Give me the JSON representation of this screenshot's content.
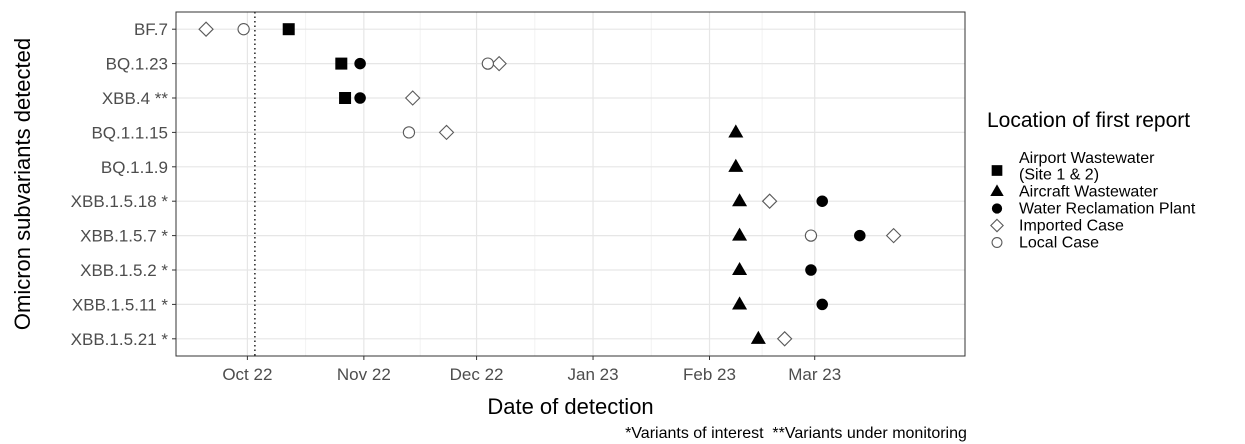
{
  "chart_data": {
    "type": "scatter",
    "xlabel": "Date of detection",
    "ylabel": "Omicron subvariants detected",
    "x_ticks": [
      "Oct 22",
      "Nov 22",
      "Dec 22",
      "Jan 23",
      "Feb 23",
      "Mar 23"
    ],
    "x_tick_dates": [
      "2022-10-01",
      "2022-11-01",
      "2022-12-01",
      "2023-01-01",
      "2023-02-01",
      "2023-03-01"
    ],
    "xlim": [
      "2022-09-12",
      "2023-04-10"
    ],
    "grid": true,
    "reference_line": {
      "date": "2022-10-03",
      "style": "dotted"
    },
    "categories": [
      "BF.7",
      "BQ.1.23",
      "XBB.4 **",
      "BQ.1.1.15",
      "BQ.1.1.9",
      "XBB.1.5.18 *",
      "XBB.1.5.7 *",
      "XBB.1.5.2 *",
      "XBB.1.5.11 *",
      "XBB.1.5.21 *"
    ],
    "legend": {
      "title": "Location of first report",
      "position": "right",
      "entries": [
        {
          "label_lines": [
            "Airport Wastewater",
            " (Site 1 & 2)"
          ],
          "shape": "square",
          "filled": true
        },
        {
          "label_lines": [
            "Aircraft Wastewater"
          ],
          "shape": "triangle",
          "filled": true
        },
        {
          "label_lines": [
            "Water Reclamation Plant"
          ],
          "shape": "circle",
          "filled": true
        },
        {
          "label_lines": [
            "Imported Case"
          ],
          "shape": "diamond",
          "filled": false
        },
        {
          "label_lines": [
            "Local Case"
          ],
          "shape": "circle",
          "filled": false
        }
      ]
    },
    "series": [
      {
        "name": "Airport Wastewater (Site 1 & 2)",
        "shape": "square",
        "filled": true,
        "points": [
          {
            "category": "BF.7",
            "date": "2022-10-12"
          },
          {
            "category": "BQ.1.23",
            "date": "2022-10-26"
          },
          {
            "category": "XBB.4 **",
            "date": "2022-10-27"
          }
        ]
      },
      {
        "name": "Aircraft Wastewater",
        "shape": "triangle",
        "filled": true,
        "points": [
          {
            "category": "BQ.1.1.15",
            "date": "2023-02-08"
          },
          {
            "category": "BQ.1.1.9",
            "date": "2023-02-08"
          },
          {
            "category": "XBB.1.5.18 *",
            "date": "2023-02-09"
          },
          {
            "category": "XBB.1.5.7 *",
            "date": "2023-02-09"
          },
          {
            "category": "XBB.1.5.2 *",
            "date": "2023-02-09"
          },
          {
            "category": "XBB.1.5.11 *",
            "date": "2023-02-09"
          },
          {
            "category": "XBB.1.5.21 *",
            "date": "2023-02-14"
          }
        ]
      },
      {
        "name": "Water Reclamation Plant",
        "shape": "circle",
        "filled": true,
        "points": [
          {
            "category": "BQ.1.23",
            "date": "2022-10-31"
          },
          {
            "category": "XBB.4 **",
            "date": "2022-10-31"
          },
          {
            "category": "XBB.1.5.18 *",
            "date": "2023-03-03"
          },
          {
            "category": "XBB.1.5.7 *",
            "date": "2023-03-13"
          },
          {
            "category": "XBB.1.5.2 *",
            "date": "2023-02-28"
          },
          {
            "category": "XBB.1.5.11 *",
            "date": "2023-03-03"
          }
        ]
      },
      {
        "name": "Imported Case",
        "shape": "diamond",
        "filled": false,
        "points": [
          {
            "category": "BF.7",
            "date": "2022-09-20"
          },
          {
            "category": "BQ.1.23",
            "date": "2022-12-07"
          },
          {
            "category": "XBB.4 **",
            "date": "2022-11-14"
          },
          {
            "category": "BQ.1.1.15",
            "date": "2022-11-23"
          },
          {
            "category": "XBB.1.5.18 *",
            "date": "2023-02-17"
          },
          {
            "category": "XBB.1.5.7 *",
            "date": "2023-03-22"
          },
          {
            "category": "XBB.1.5.21 *",
            "date": "2023-02-21"
          }
        ]
      },
      {
        "name": "Local Case",
        "shape": "circle",
        "filled": false,
        "points": [
          {
            "category": "BF.7",
            "date": "2022-09-30"
          },
          {
            "category": "BQ.1.23",
            "date": "2022-12-04"
          },
          {
            "category": "BQ.1.1.15",
            "date": "2022-11-13"
          },
          {
            "category": "XBB.1.5.7 *",
            "date": "2023-02-28"
          }
        ]
      }
    ],
    "footnote": "*Variants of interest  **Variants under monitoring"
  }
}
